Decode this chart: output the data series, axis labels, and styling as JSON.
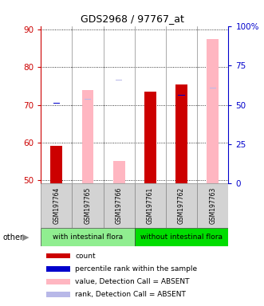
{
  "title": "GDS2968 / 97767_at",
  "samples": [
    "GSM197764",
    "GSM197765",
    "GSM197766",
    "GSM197761",
    "GSM197762",
    "GSM197763"
  ],
  "ylim_left": [
    49,
    91
  ],
  "ylim_right": [
    0,
    100
  ],
  "yticks_left": [
    50,
    60,
    70,
    80,
    90
  ],
  "yticks_right": [
    0,
    25,
    50,
    75,
    100
  ],
  "yticklabels_right": [
    "0",
    "25",
    "50",
    "75",
    "100%"
  ],
  "count_values": [
    59.0,
    null,
    null,
    73.5,
    75.5,
    null
  ],
  "rank_values": [
    70.5,
    null,
    null,
    73.3,
    72.5,
    null
  ],
  "absent_value_values": [
    null,
    74.0,
    55.0,
    null,
    null,
    87.5
  ],
  "absent_rank_values": [
    null,
    71.5,
    76.5,
    null,
    null,
    74.5
  ],
  "bar_bottom": 49,
  "count_color": "#cc0000",
  "rank_color": "#0000cc",
  "absent_value_color": "#ffb6c1",
  "absent_rank_color": "#b8b8e8",
  "left_label_color": "#cc0000",
  "right_label_color": "#0000cc",
  "count_bar_width": 0.38,
  "absent_bar_width": 0.38,
  "rank_marker_size": 0.18,
  "legend_items": [
    {
      "label": "count",
      "color": "#cc0000"
    },
    {
      "label": "percentile rank within the sample",
      "color": "#0000cc"
    },
    {
      "label": "value, Detection Call = ABSENT",
      "color": "#ffb6c1"
    },
    {
      "label": "rank, Detection Call = ABSENT",
      "color": "#b8b8e8"
    }
  ],
  "group1_label": "with intestinal flora",
  "group2_label": "without intestinal flora",
  "group1_color": "#90ee90",
  "group2_color": "#00dd00",
  "gray_box_color": "#d3d3d3"
}
